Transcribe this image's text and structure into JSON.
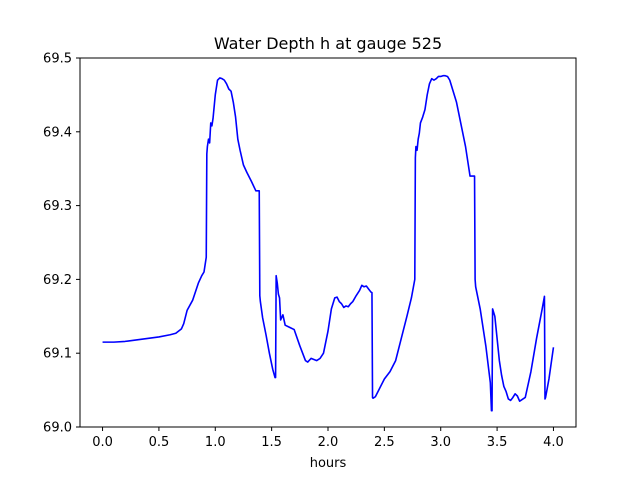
{
  "chart_data": {
    "type": "line",
    "title": "Water Depth h at gauge 525",
    "xlabel": "hours",
    "ylabel": "",
    "xlim": [
      -0.2,
      4.2
    ],
    "ylim": [
      69.0,
      69.5
    ],
    "xticks": [
      0.0,
      0.5,
      1.0,
      1.5,
      2.0,
      2.5,
      3.0,
      3.5,
      4.0
    ],
    "xtick_labels": [
      "0.0",
      "0.5",
      "1.0",
      "1.5",
      "2.0",
      "2.5",
      "3.0",
      "3.5",
      "4.0"
    ],
    "yticks": [
      69.0,
      69.1,
      69.2,
      69.3,
      69.4,
      69.5
    ],
    "ytick_labels": [
      "69.0",
      "69.1",
      "69.2",
      "69.3",
      "69.4",
      "69.5"
    ],
    "grid": false,
    "series": [
      {
        "color": "#0000ff",
        "x": [
          0.0,
          0.1,
          0.2,
          0.3,
          0.4,
          0.5,
          0.6,
          0.65,
          0.7,
          0.72,
          0.75,
          0.8,
          0.85,
          0.88,
          0.9,
          0.92,
          0.925,
          0.93,
          0.94,
          0.95,
          0.96,
          0.97,
          0.98,
          1.0,
          1.02,
          1.04,
          1.06,
          1.08,
          1.1,
          1.12,
          1.14,
          1.16,
          1.18,
          1.2,
          1.22,
          1.25,
          1.28,
          1.32,
          1.36,
          1.39,
          1.395,
          1.4,
          1.42,
          1.45,
          1.48,
          1.51,
          1.53,
          1.535,
          1.54,
          1.55,
          1.56,
          1.57,
          1.58,
          1.6,
          1.62,
          1.66,
          1.7,
          1.75,
          1.8,
          1.82,
          1.85,
          1.9,
          1.93,
          1.96,
          2.0,
          2.03,
          2.06,
          2.08,
          2.1,
          2.12,
          2.14,
          2.16,
          2.18,
          2.2,
          2.22,
          2.25,
          2.28,
          2.3,
          2.32,
          2.34,
          2.36,
          2.38,
          2.39,
          2.395,
          2.4,
          2.42,
          2.45,
          2.5,
          2.55,
          2.6,
          2.65,
          2.7,
          2.74,
          2.77,
          2.775,
          2.78,
          2.79,
          2.8,
          2.81,
          2.82,
          2.84,
          2.86,
          2.88,
          2.9,
          2.92,
          2.94,
          2.96,
          2.98,
          3.0,
          3.02,
          3.04,
          3.06,
          3.08,
          3.1,
          3.14,
          3.18,
          3.22,
          3.26,
          3.3,
          3.305,
          3.31,
          3.35,
          3.4,
          3.44,
          3.45,
          3.455,
          3.46,
          3.48,
          3.5,
          3.52,
          3.54,
          3.56,
          3.58,
          3.6,
          3.62,
          3.64,
          3.66,
          3.68,
          3.7,
          3.72,
          3.75,
          3.8,
          3.85,
          3.9,
          3.92,
          3.925,
          3.93,
          3.96,
          4.0
        ],
        "y": [
          69.115,
          69.115,
          69.116,
          69.118,
          69.12,
          69.122,
          69.125,
          69.127,
          69.133,
          69.14,
          69.158,
          69.172,
          69.195,
          69.205,
          69.21,
          69.23,
          69.37,
          69.38,
          69.39,
          69.385,
          69.412,
          69.408,
          69.418,
          69.45,
          69.47,
          69.473,
          69.472,
          69.47,
          69.465,
          69.458,
          69.455,
          69.44,
          69.42,
          69.39,
          69.375,
          69.355,
          69.345,
          69.333,
          69.32,
          69.32,
          69.178,
          69.17,
          69.148,
          69.125,
          69.1,
          69.078,
          69.067,
          69.067,
          69.205,
          69.195,
          69.18,
          69.175,
          69.145,
          69.152,
          69.138,
          69.135,
          69.132,
          69.11,
          69.09,
          69.088,
          69.093,
          69.09,
          69.093,
          69.1,
          69.13,
          69.16,
          69.175,
          69.176,
          69.17,
          69.167,
          69.162,
          69.164,
          69.163,
          69.167,
          69.17,
          69.178,
          69.185,
          69.192,
          69.19,
          69.191,
          69.187,
          69.183,
          69.182,
          69.04,
          69.039,
          69.041,
          69.05,
          69.065,
          69.075,
          69.09,
          69.12,
          69.15,
          69.175,
          69.2,
          69.365,
          69.38,
          69.375,
          69.39,
          69.398,
          69.412,
          69.42,
          69.43,
          69.45,
          69.465,
          69.472,
          69.47,
          69.472,
          69.475,
          69.475,
          69.476,
          69.476,
          69.475,
          69.47,
          69.46,
          69.44,
          69.41,
          69.38,
          69.34,
          69.34,
          69.2,
          69.19,
          69.16,
          69.11,
          69.06,
          69.022,
          69.022,
          69.16,
          69.15,
          69.12,
          69.09,
          69.07,
          69.055,
          69.048,
          69.038,
          69.036,
          69.04,
          69.045,
          69.042,
          69.035,
          69.037,
          69.04,
          69.075,
          69.12,
          69.16,
          69.177,
          69.038,
          69.04,
          69.065,
          69.108
        ]
      }
    ]
  }
}
